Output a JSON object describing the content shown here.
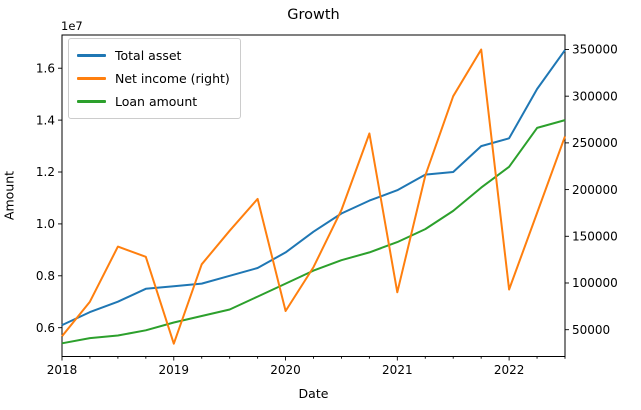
{
  "chart_data": {
    "type": "line",
    "title": "Growth",
    "xlabel": "Date",
    "ylabel": "Amount",
    "offset_text": "1e7",
    "grid": false,
    "legend_position": "upper left",
    "x_quarters": [
      "2018Q1",
      "2018Q2",
      "2018Q3",
      "2018Q4",
      "2019Q1",
      "2019Q2",
      "2019Q3",
      "2019Q4",
      "2020Q1",
      "2020Q2",
      "2020Q3",
      "2020Q4",
      "2021Q1",
      "2021Q2",
      "2021Q3",
      "2021Q4",
      "2022Q1",
      "2022Q2",
      "2022Q3"
    ],
    "x_major_ticks": [
      {
        "index": 0,
        "label": "2018"
      },
      {
        "index": 4,
        "label": "2019"
      },
      {
        "index": 8,
        "label": "2020"
      },
      {
        "index": 12,
        "label": "2021"
      },
      {
        "index": 16,
        "label": "2022"
      }
    ],
    "series": [
      {
        "name": "Total asset",
        "axis": "left",
        "color": "#1f77b4",
        "values": [
          6100000,
          6600000,
          7000000,
          7500000,
          7600000,
          7700000,
          8000000,
          8300000,
          8900000,
          9700000,
          10400000,
          10900000,
          11300000,
          11900000,
          12000000,
          13000000,
          13300000,
          15200000,
          16700000
        ]
      },
      {
        "name": "Net income (right)",
        "axis": "right",
        "color": "#ff7f0e",
        "values": [
          43000,
          80000,
          139000,
          128000,
          35000,
          120000,
          156000,
          190000,
          70000,
          117000,
          178000,
          260000,
          90000,
          215000,
          300000,
          350000,
          93000,
          175000,
          257000
        ]
      },
      {
        "name": "Loan amount",
        "axis": "left",
        "color": "#2ca02c",
        "values": [
          5400000,
          5600000,
          5700000,
          5900000,
          6200000,
          6450000,
          6700000,
          7200000,
          7700000,
          8200000,
          8600000,
          8900000,
          9300000,
          9800000,
          10500000,
          11400000,
          12200000,
          13700000,
          14000000
        ]
      }
    ],
    "left_axis": {
      "ticks": [
        6000000,
        8000000,
        10000000,
        12000000,
        14000000,
        16000000
      ],
      "tick_labels": [
        "0.6",
        "0.8",
        "1.0",
        "1.2",
        "1.4",
        "1.6"
      ],
      "lim": [
        4890000,
        17280000
      ]
    },
    "right_axis": {
      "ticks": [
        50000,
        100000,
        150000,
        200000,
        250000,
        300000,
        350000
      ],
      "tick_labels": [
        "50000",
        "100000",
        "150000",
        "200000",
        "250000",
        "300000",
        "350000"
      ],
      "lim": [
        21300,
        365500
      ]
    }
  }
}
